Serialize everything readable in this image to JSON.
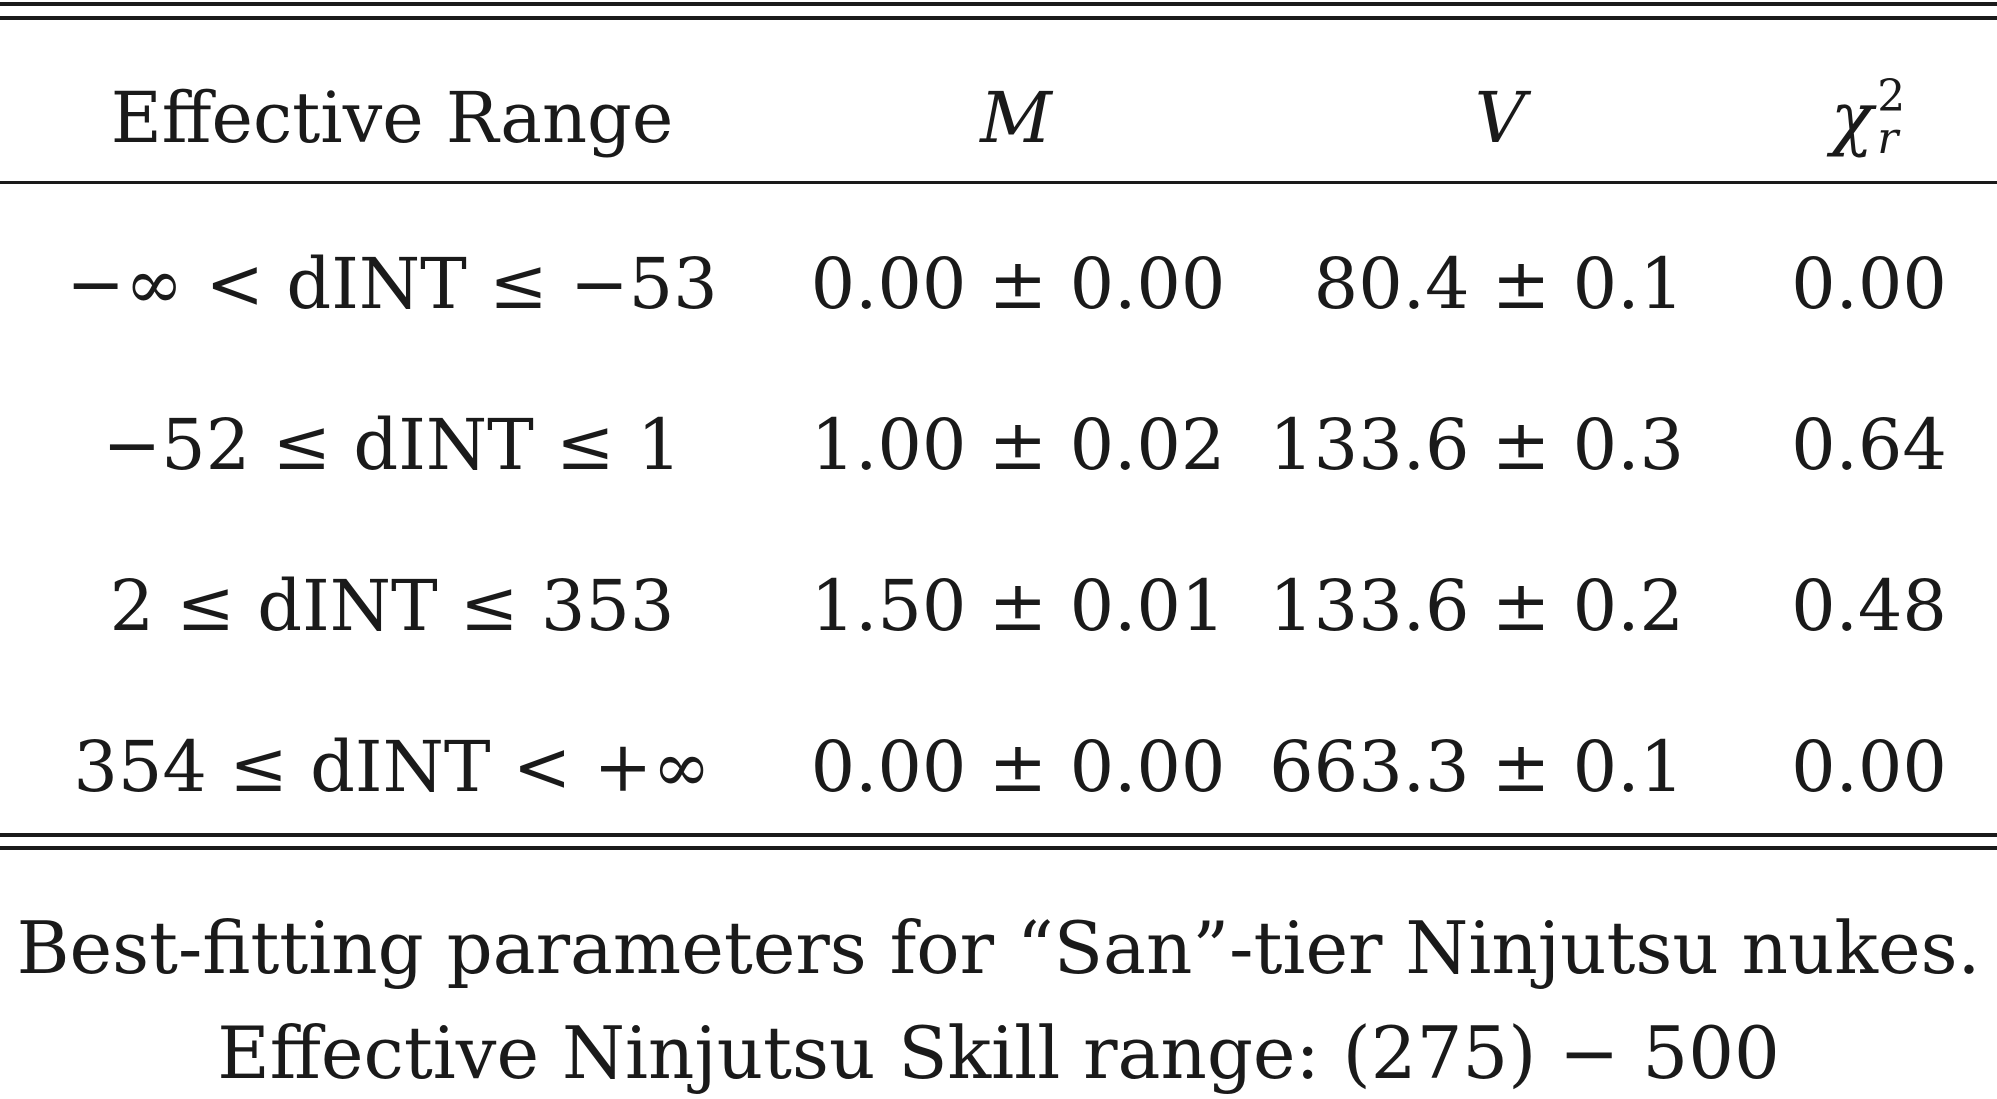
{
  "table": {
    "headers": {
      "range": "Effective Range",
      "m": "M",
      "v": "V",
      "chi_base": "χ",
      "chi_sup": "2",
      "chi_sub": "r"
    },
    "rows": [
      {
        "range": "−∞ < dINT ≤ −53",
        "m": "0.00 ± 0.00",
        "v": "80.4 ± 0.1",
        "chi2": "0.00"
      },
      {
        "range": "−52 ≤ dINT ≤ 1",
        "m": "1.00 ± 0.02",
        "v": "133.6 ± 0.3",
        "chi2": "0.64"
      },
      {
        "range": "2 ≤ dINT ≤ 353",
        "m": "1.50 ± 0.01",
        "v": "133.6 ± 0.2",
        "chi2": "0.48"
      },
      {
        "range": "354 ≤ dINT < +∞",
        "m": "0.00 ± 0.00",
        "v": "663.3 ± 0.1",
        "chi2": "0.00"
      }
    ]
  },
  "caption": {
    "line1": "Best-fitting parameters for “San”-tier Ninjutsu nukes.",
    "line2": "Effective Ninjutsu Skill range: (275) − 500"
  }
}
